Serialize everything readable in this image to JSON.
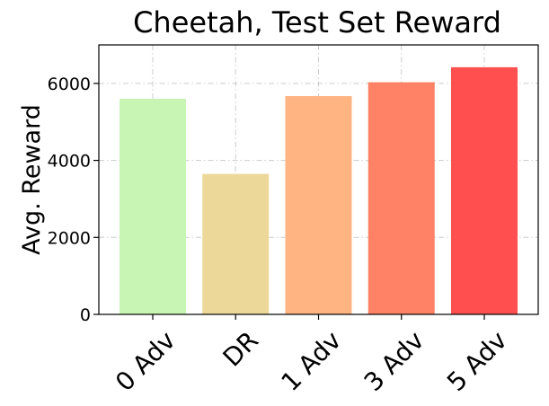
{
  "chart_data": {
    "type": "bar",
    "title": "Cheetah, Test Set Reward",
    "xlabel": "",
    "ylabel": "Avg. Reward",
    "categories": [
      "0 Adv",
      "DR",
      "1 Adv",
      "3 Adv",
      "5 Adv"
    ],
    "values": [
      5600,
      3650,
      5670,
      6030,
      6420
    ],
    "colors": [
      "#c8f5b4",
      "#ecd99a",
      "#ffb482",
      "#ff8266",
      "#ff4f4f"
    ],
    "ylim": [
      0,
      7000
    ],
    "yticks": [
      0,
      2000,
      4000,
      6000
    ],
    "ytick_labels": [
      "0",
      "2000",
      "4000",
      "6000"
    ],
    "grid": true,
    "xtick_rotation": "45 degrees"
  }
}
